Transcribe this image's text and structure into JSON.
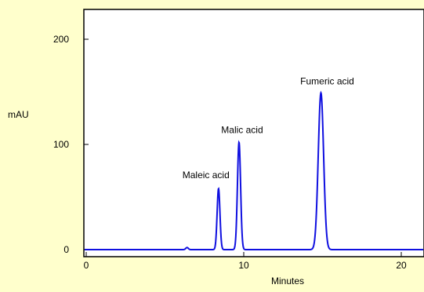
{
  "chart_data": {
    "type": "line",
    "xlabel": "Minutes",
    "ylabel": "mAU",
    "xlim": [
      0,
      21.5
    ],
    "ylim": [
      -1,
      200
    ],
    "xticks": [
      0,
      10,
      20
    ],
    "yticks": [
      0,
      100,
      200
    ],
    "grid": false,
    "series": [
      {
        "peaks": [
          {
            "center": 6.4,
            "height": 2,
            "sigma": 0.08
          },
          {
            "center": 8.4,
            "height": 58,
            "sigma": 0.09
          },
          {
            "center": 9.7,
            "height": 102,
            "sigma": 0.1
          },
          {
            "center": 14.9,
            "height": 149,
            "sigma": 0.17
          }
        ],
        "color": "#1010e0"
      }
    ],
    "annotations": [
      {
        "text": "Maleic acid",
        "x": 7.6,
        "y": 68
      },
      {
        "text": "Malic acid",
        "x": 9.9,
        "y": 111
      },
      {
        "text": "Fumeric acid",
        "x": 15.3,
        "y": 157
      }
    ]
  },
  "colors": {
    "background": "#ffffcc",
    "plot_background": "#ffffff",
    "line": "#1010e0"
  }
}
